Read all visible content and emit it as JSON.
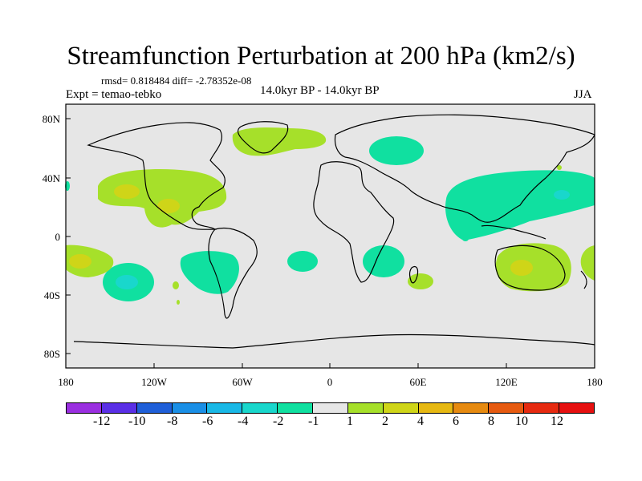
{
  "header": {
    "title": "Streamfunction Perturbation at 200 hPa (km2/s)",
    "stats": "rmsd= 0.818484 diff= -2.78352e-08",
    "experiment": "Expt = temao-tebko",
    "period": "14.0kyr BP - 14.0kyr BP",
    "season": "JJA"
  },
  "axes": {
    "y_labels": [
      "80N",
      "40N",
      "0",
      "40S",
      "80S"
    ],
    "x_labels": [
      "180",
      "120W",
      "60W",
      "0",
      "60E",
      "120E",
      "180"
    ]
  },
  "colorbar": {
    "colors": [
      "#9a2fe0",
      "#5a2fe6",
      "#1f5fd8",
      "#1a8fe6",
      "#19b8e6",
      "#19d7cc",
      "#10e0a0",
      "#e6e6e6",
      "#a6e02a",
      "#cfd518",
      "#e6b812",
      "#e68a10",
      "#e65a10",
      "#e62a10",
      "#e61010"
    ],
    "labels": [
      "-12",
      "-10",
      "-8",
      "-6",
      "-4",
      "-2",
      "-1",
      "1",
      "2",
      "4",
      "6",
      "8",
      "10",
      "12"
    ]
  },
  "palette": {
    "ocean": "#e6e6e6",
    "green": "#a6e02a",
    "yellow": "#cfd518",
    "orange": "#e6b812",
    "teal": "#10e0a0",
    "cyan": "#19d7cc"
  }
}
